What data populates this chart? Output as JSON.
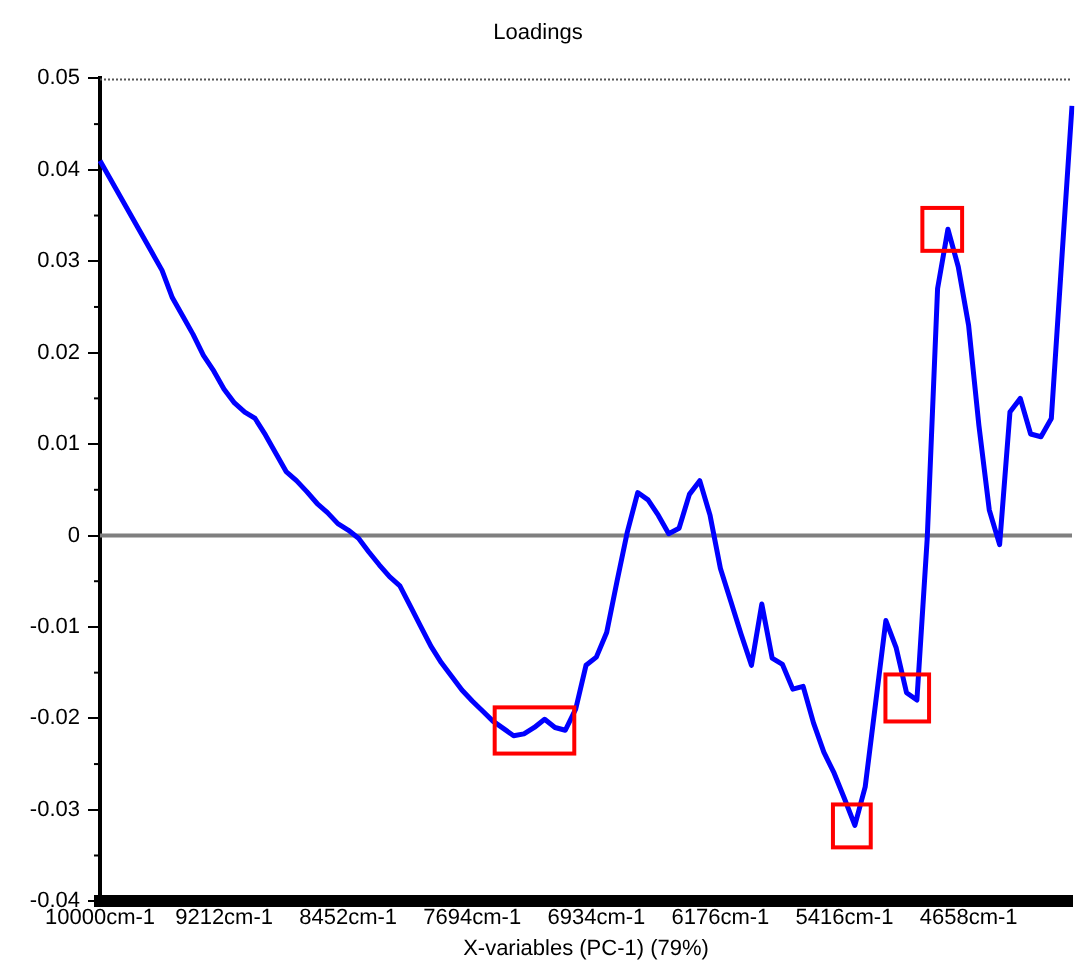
{
  "chart_data": {
    "type": "line",
    "title": "Loadings",
    "xlabel": "X-variables (PC-1) (79%)",
    "categories": [
      "10000cm-1",
      null,
      null,
      null,
      null,
      null,
      null,
      null,
      null,
      null,
      null,
      null,
      "9212cm-1",
      null,
      null,
      null,
      null,
      null,
      null,
      null,
      null,
      null,
      null,
      null,
      "8452cm-1",
      null,
      null,
      null,
      null,
      null,
      null,
      null,
      null,
      null,
      null,
      null,
      "7694cm-1",
      null,
      null,
      null,
      null,
      null,
      null,
      null,
      null,
      null,
      null,
      null,
      "6934cm-1",
      null,
      null,
      null,
      null,
      null,
      null,
      null,
      null,
      null,
      null,
      null,
      "6176cm-1",
      null,
      null,
      null,
      null,
      null,
      null,
      null,
      null,
      null,
      null,
      null,
      "5416cm-1",
      null,
      null,
      null,
      null,
      null,
      null,
      null,
      null,
      null,
      null,
      null,
      "4658cm-1",
      null,
      null,
      null,
      null,
      null,
      null,
      null,
      null,
      null,
      null
    ],
    "series": [
      {
        "color": "#0000ff",
        "values": [
          0.041,
          0.039,
          0.037,
          0.035,
          0.033,
          0.031,
          0.029,
          0.026,
          0.024,
          0.022,
          0.0197,
          0.018,
          0.016,
          0.0145,
          0.0135,
          0.0128,
          0.011,
          0.009,
          0.007,
          0.006,
          0.0048,
          0.0035,
          0.0025,
          0.0013,
          0.0006,
          -0.0003,
          -0.0018,
          -0.0032,
          -0.0045,
          -0.0055,
          -0.0077,
          -0.0099,
          -0.0121,
          -0.0139,
          -0.0154,
          -0.0169,
          -0.0181,
          -0.0192,
          -0.0203,
          -0.0211,
          -0.0219,
          -0.0217,
          -0.021,
          -0.0201,
          -0.021,
          -0.0213,
          -0.019,
          -0.0142,
          -0.0133,
          -0.0106,
          -0.005,
          0.0004,
          0.0047,
          0.0039,
          0.0022,
          0.0002,
          0.0008,
          0.0045,
          0.006,
          0.0022,
          -0.0036,
          -0.0072,
          -0.0108,
          -0.0142,
          -0.0075,
          -0.0134,
          -0.0141,
          -0.0168,
          -0.0165,
          -0.0205,
          -0.0237,
          -0.026,
          -0.0288,
          -0.0317,
          -0.0275,
          -0.0184,
          -0.0093,
          -0.0123,
          -0.0172,
          -0.018,
          -0.0003,
          0.027,
          0.0335,
          0.0294,
          0.023,
          0.012,
          0.0028,
          -0.001,
          0.0135,
          0.015,
          0.0111,
          0.0108,
          0.0128,
          0.03,
          0.047
        ]
      }
    ],
    "ylim": [
      -0.04,
      0.05
    ],
    "yticks": [
      -0.04,
      -0.03,
      -0.02,
      -0.01,
      0,
      0.01,
      0.02,
      0.03,
      0.04,
      0.05
    ],
    "ref_lines": [
      {
        "axis": "y",
        "value": 0,
        "color": "#7f7f7f"
      }
    ],
    "grid": false,
    "legend": false,
    "marker": "none",
    "line_style": "solid"
  }
}
